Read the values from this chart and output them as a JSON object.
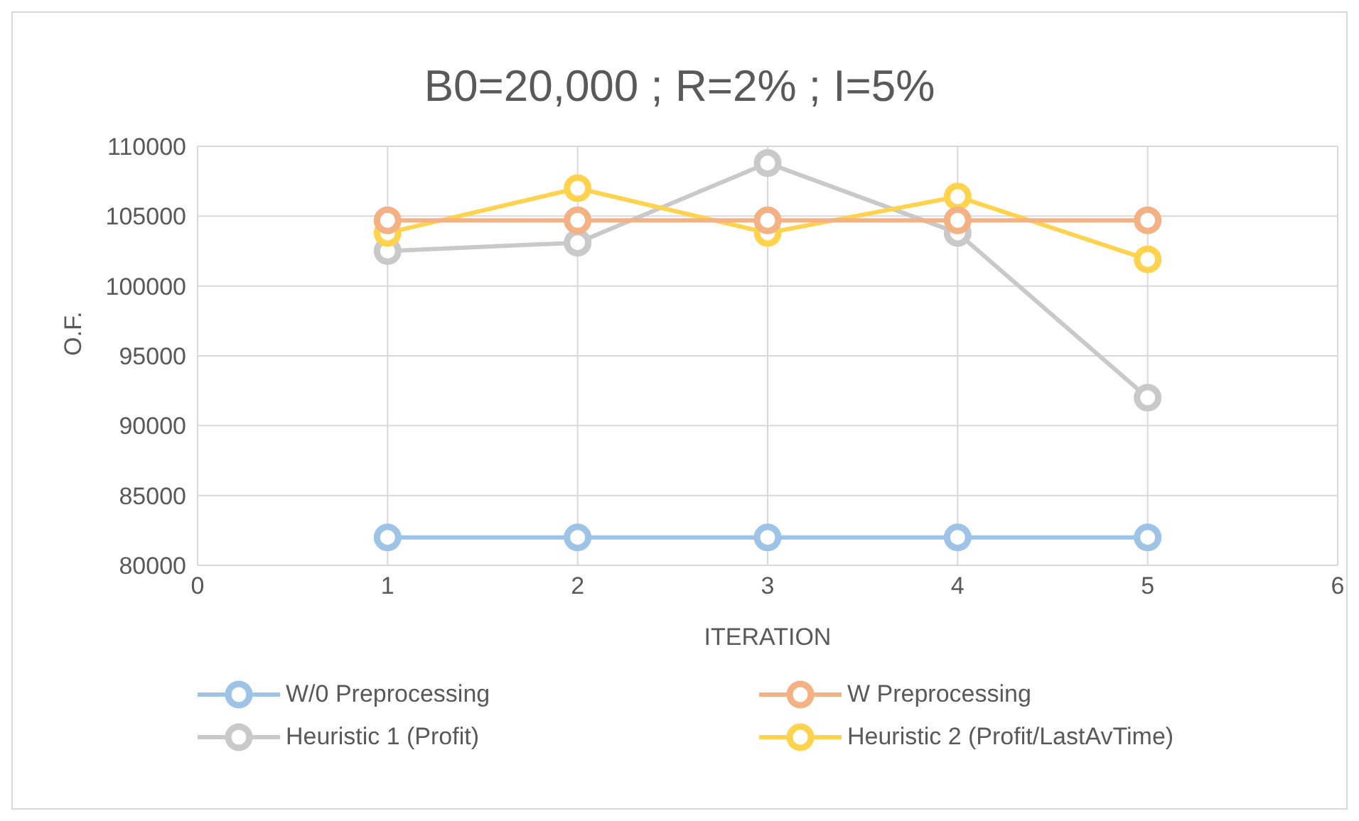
{
  "chart_data": {
    "type": "line",
    "title": "B0=20,000 ; R=2% ; I=5%",
    "xlabel": "ITERATION",
    "ylabel": "O.F.",
    "x": [
      1,
      2,
      3,
      4,
      5
    ],
    "series": [
      {
        "name": "W/0 Preprocessing",
        "color": "#9dc3e6",
        "values": [
          82000,
          82000,
          82000,
          82000,
          82000
        ]
      },
      {
        "name": "W Preprocessing",
        "color": "#f4b183",
        "values": [
          104700,
          104700,
          104700,
          104700,
          104700
        ]
      },
      {
        "name": "Heuristic 1 (Profit)",
        "color": "#c9c9c9",
        "values": [
          102500,
          103100,
          108800,
          103800,
          92000
        ]
      },
      {
        "name": "Heuristic 2 (Profit/LastAvTime)",
        "color": "#ffd34d",
        "values": [
          103800,
          107000,
          103800,
          106400,
          101900
        ]
      }
    ],
    "xlim": [
      0,
      6
    ],
    "xticks": [
      0,
      1,
      2,
      3,
      4,
      5,
      6
    ],
    "ylim": [
      80000,
      110000
    ],
    "yticks": [
      80000,
      85000,
      90000,
      95000,
      100000,
      105000,
      110000
    ],
    "grid": true,
    "legend": "bottom",
    "marker": "circle",
    "line_style": "solid"
  }
}
